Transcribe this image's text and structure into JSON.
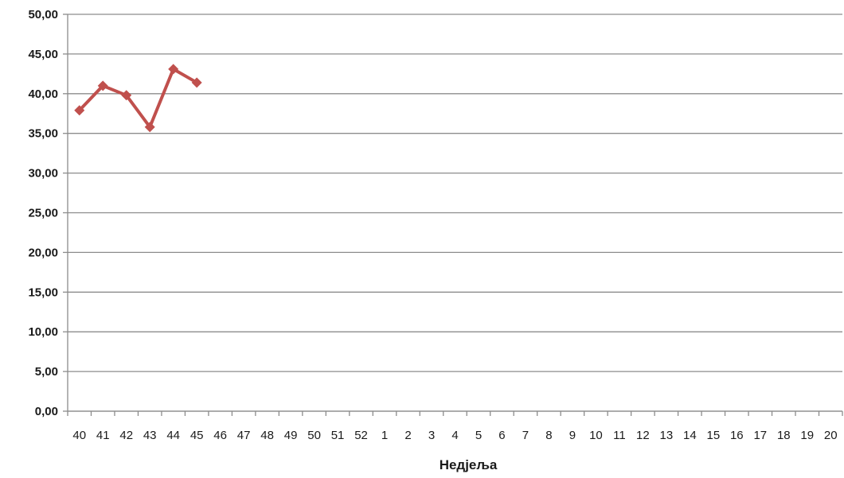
{
  "chart_data": {
    "type": "line",
    "title": "",
    "xlabel": "Недјеља",
    "ylabel": "",
    "categories": [
      "40",
      "41",
      "42",
      "43",
      "44",
      "45",
      "46",
      "47",
      "48",
      "49",
      "50",
      "51",
      "52",
      "1",
      "2",
      "3",
      "4",
      "5",
      "6",
      "7",
      "8",
      "9",
      "10",
      "11",
      "12",
      "13",
      "14",
      "15",
      "16",
      "17",
      "18",
      "19",
      "20"
    ],
    "series": [
      {
        "values": [
          37.9,
          41.0,
          39.8,
          35.8,
          43.1,
          41.4,
          null,
          null,
          null,
          null,
          null,
          null,
          null,
          null,
          null,
          null,
          null,
          null,
          null,
          null,
          null,
          null,
          null,
          null,
          null,
          null,
          null,
          null,
          null,
          null,
          null,
          null,
          null
        ],
        "color": "#c0504d",
        "marker": "diamond"
      }
    ],
    "ylim": [
      0,
      50
    ],
    "y_ticks": [
      "0,00",
      "5,00",
      "10,00",
      "15,00",
      "20,00",
      "25,00",
      "30,00",
      "35,00",
      "40,00",
      "45,00",
      "50,00"
    ],
    "grid": "horizontal",
    "legend": "none",
    "colors": {
      "line": "#c0504d",
      "grid": "#8c8c8c",
      "axis": "#8c8c8c"
    }
  }
}
